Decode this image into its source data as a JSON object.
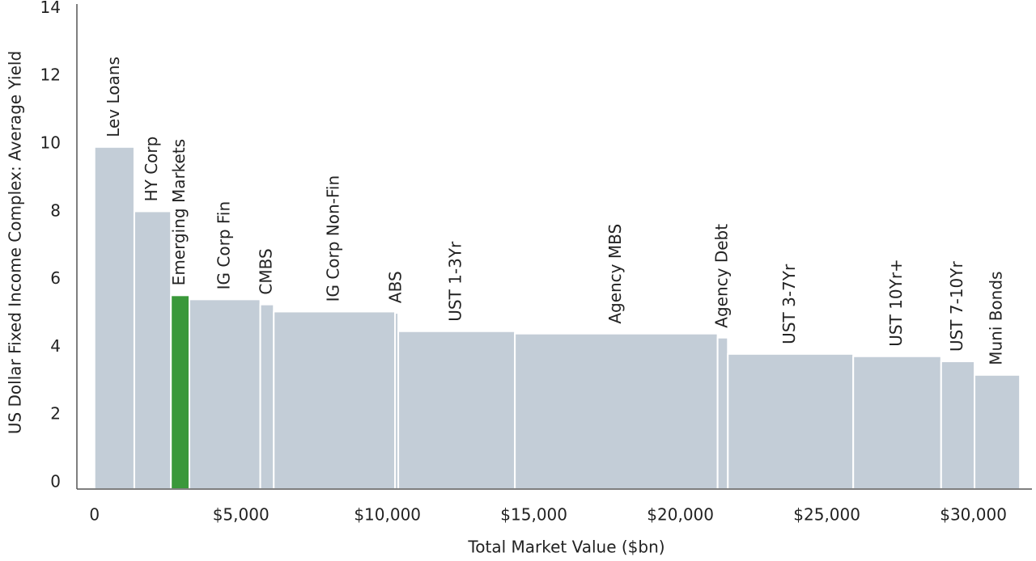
{
  "chart_data": {
    "type": "variable_width_bar",
    "xlabel": "Total Market Value ($bn)",
    "ylabel": "US Dollar Fixed Income Complex: Average Yield",
    "categories": [
      "Lev Loans",
      "HY Corp",
      "Emerging Markets",
      "IG Corp Fin",
      "CMBS",
      "IG Corp Non-Fin",
      "ABS",
      "UST 1-3Yr",
      "Agency MBS",
      "Agency Debt",
      "UST 3-7Yr",
      "UST 10Yr+",
      "UST 7-10Yr",
      "Muni Bonds"
    ],
    "widths": [
      1360,
      1250,
      630,
      2420,
      460,
      4140,
      110,
      3980,
      6920,
      350,
      4280,
      3000,
      1140,
      1550
    ],
    "values": [
      10.1,
      8.2,
      5.72,
      5.6,
      5.45,
      5.24,
      5.2,
      4.66,
      4.59,
      4.47,
      3.99,
      3.92,
      3.77,
      3.37
    ],
    "colors": [
      "#c3cdd7",
      "#c3cdd7",
      "#3a983a",
      "#c3cdd7",
      "#c3cdd7",
      "#c3cdd7",
      "#c3cdd7",
      "#c3cdd7",
      "#c3cdd7",
      "#c3cdd7",
      "#c3cdd7",
      "#c3cdd7",
      "#c3cdd7",
      "#c3cdd7"
    ],
    "label_colors": [
      "#222222",
      "#222222",
      "#3a983a",
      "#222222",
      "#222222",
      "#222222",
      "#222222",
      "#222222",
      "#222222",
      "#222222",
      "#222222",
      "#222222",
      "#222222",
      "#222222"
    ],
    "xlim": [
      -600,
      32000
    ],
    "xticks": [
      0,
      {
        "value": 5000,
        "label": "$5,000"
      },
      {
        "value": 10000,
        "label": "$10,000"
      },
      {
        "value": 15000,
        "label": "$15,000"
      },
      {
        "value": 20000,
        "label": "$20,000"
      },
      {
        "value": 25000,
        "label": "$25,000"
      },
      {
        "value": 30000,
        "label": "$30,000"
      }
    ],
    "ylim": [
      0,
      14.2
    ],
    "yticks": [
      0,
      2,
      4,
      6,
      8,
      10,
      12,
      14
    ],
    "grid": false
  }
}
